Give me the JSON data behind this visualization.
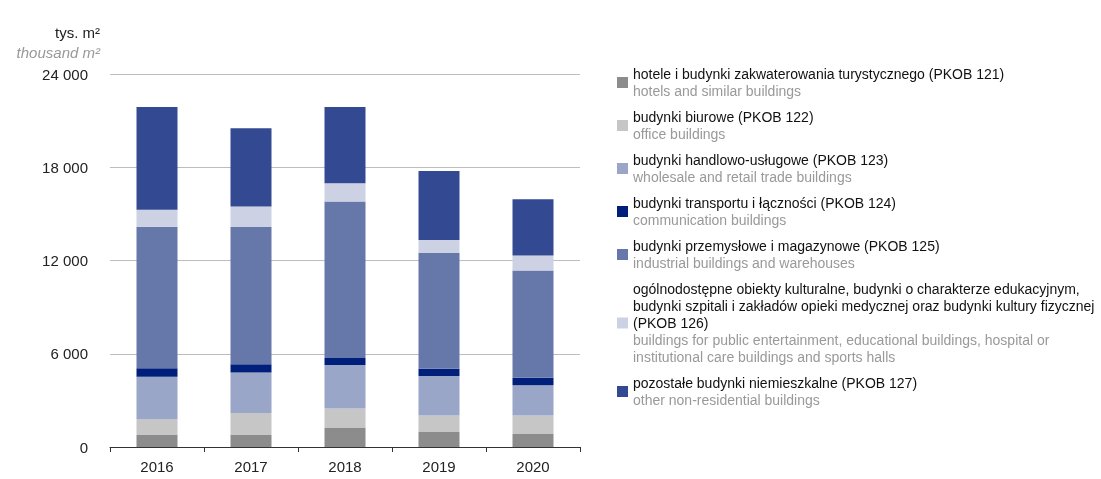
{
  "chart_data": {
    "type": "bar",
    "stacked": true,
    "ylabel": "tys. m²\nthousand m²",
    "categories": [
      "2016",
      "2017",
      "2018",
      "2019",
      "2020"
    ],
    "ylim": [
      0,
      24000
    ],
    "yticks": [
      {
        "value": 0,
        "label": "0"
      },
      {
        "value": 6000,
        "label": "6 000"
      },
      {
        "value": 12000,
        "label": "12 000"
      },
      {
        "value": 18000,
        "label": "18 000"
      },
      {
        "value": 24000,
        "label": "24 000"
      }
    ],
    "grid": "y",
    "legend": "right",
    "series": [
      {
        "name": "hotele i budynki zakwaterowania turystycznego (PKOB 121)\nhotels and similar buildings",
        "color": "#8c8c8c",
        "values": [
          770,
          770,
          1260,
          990,
          840
        ]
      },
      {
        "name": "budynki biurowe (PKOB 122)\noffice buildings",
        "color": "#c6c6c6",
        "values": [
          1030,
          1410,
          1220,
          1030,
          1180
        ]
      },
      {
        "name": "budynki handlowo-usługowe (PKOB 123)\nwholesale and retail trade buildings",
        "color": "#9aa6c8",
        "values": [
          2720,
          2610,
          2790,
          2550,
          1950
        ]
      },
      {
        "name": "budynki transportu i łączności (PKOB 124)\ncommunication buildings",
        "color": "#001f7a",
        "values": [
          540,
          540,
          450,
          470,
          490
        ]
      },
      {
        "name": "budynki przemysłowe i magazynowe (PKOB 125)\nindustrial buildings and warehouses",
        "color": "#6677aa",
        "values": [
          9110,
          8830,
          10070,
          7440,
          6900
        ]
      },
      {
        "name": "ogólnodostępne obiekty kulturalne, budynki o charakterze edukacyjnym, budynki szpitali i zakładów opieki medycznej oraz budynki kultury fizycznej (PKOB 126)\nbuildings for public entertainment, educational buildings, hospital or institutional care buildings and sports halls",
        "color": "#ccd2e4",
        "values": [
          1090,
          1310,
          1180,
          840,
          960
        ]
      },
      {
        "name": "pozostałe budynki niemieszkalne (PKOB 127)\nother non-residential buildings",
        "color": "#334a92",
        "values": [
          6620,
          5040,
          4910,
          4440,
          3620
        ]
      }
    ]
  }
}
